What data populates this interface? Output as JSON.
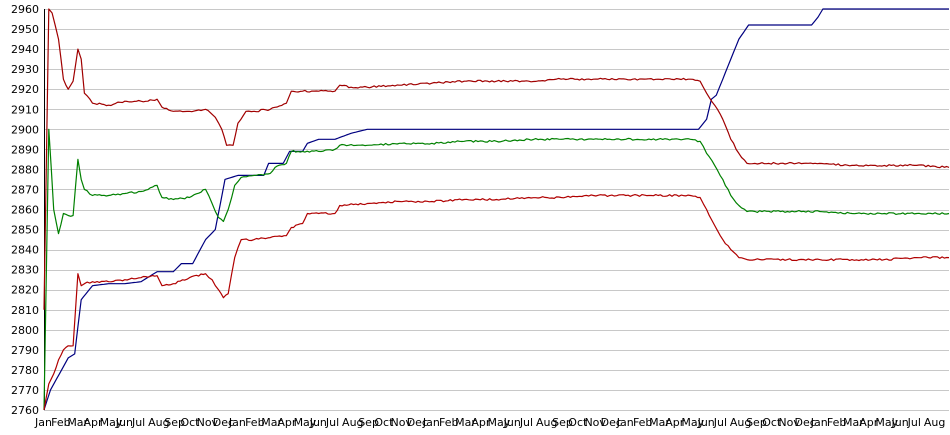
{
  "chart_data": {
    "type": "line",
    "title": "",
    "xlabel": "",
    "ylabel": "",
    "ylim": [
      2760,
      2960
    ],
    "grid": true,
    "legend": "none",
    "y_ticks": [
      2760,
      2770,
      2780,
      2790,
      2800,
      2810,
      2820,
      2830,
      2840,
      2850,
      2860,
      2870,
      2880,
      2890,
      2900,
      2910,
      2920,
      2930,
      2940,
      2950,
      2960
    ],
    "x_month_count": 56,
    "x_tick_labels": [
      "Jan",
      "Feb",
      "Mar",
      "Apr",
      "May",
      "Jun",
      "Jul",
      "Aug",
      "Sep",
      "Oct",
      "Nov",
      "Dec",
      "Jan",
      "Feb",
      "Mar",
      "Apr",
      "May",
      "Jun",
      "Jul",
      "Aug",
      "Sep",
      "Oct",
      "Nov",
      "Dec",
      "Jan",
      "Feb",
      "Mar",
      "Apr",
      "May",
      "Jun",
      "Jul",
      "Aug",
      "Sep",
      "Oct",
      "Nov",
      "Dec",
      "Jan",
      "Feb",
      "Mar",
      "Apr",
      "May",
      "Jun",
      "Jul",
      "Aug",
      "Sep",
      "Oct",
      "Nov",
      "Dec",
      "Jan",
      "Feb",
      "Mar",
      "Apr",
      "May",
      "Jun",
      "Jul",
      "Aug"
    ],
    "series": [
      {
        "color": "#000080",
        "points": [
          [
            0,
            2760
          ],
          [
            0.4,
            2770
          ],
          [
            1.5,
            2786
          ],
          [
            1.9,
            2788
          ],
          [
            2.3,
            2815
          ],
          [
            3,
            2822
          ],
          [
            4,
            2823
          ],
          [
            5,
            2823
          ],
          [
            6,
            2824
          ],
          [
            7,
            2829
          ],
          [
            8,
            2829
          ],
          [
            8.5,
            2833
          ],
          [
            9.2,
            2833
          ],
          [
            10,
            2845
          ],
          [
            10.6,
            2850
          ],
          [
            11.2,
            2875
          ],
          [
            12,
            2877
          ],
          [
            13,
            2877
          ],
          [
            13.6,
            2877
          ],
          [
            13.9,
            2883
          ],
          [
            14.8,
            2883
          ],
          [
            15.2,
            2889
          ],
          [
            16,
            2889
          ],
          [
            16.3,
            2893
          ],
          [
            17,
            2895
          ],
          [
            18,
            2895
          ],
          [
            19,
            2898
          ],
          [
            20,
            2900
          ],
          [
            25,
            2900
          ],
          [
            30,
            2900
          ],
          [
            35,
            2900
          ],
          [
            40.5,
            2900
          ],
          [
            41,
            2905
          ],
          [
            41.3,
            2915
          ],
          [
            41.6,
            2917
          ],
          [
            42,
            2925
          ],
          [
            42.5,
            2935
          ],
          [
            43,
            2945
          ],
          [
            43.6,
            2952
          ],
          [
            45,
            2952
          ],
          [
            47.5,
            2952
          ],
          [
            47.9,
            2956
          ],
          [
            48.2,
            2960
          ],
          [
            52,
            2960
          ],
          [
            56,
            2960
          ]
        ]
      },
      {
        "color": "#a00000",
        "points": [
          [
            0,
            2810
          ],
          [
            0.3,
            2960
          ],
          [
            0.5,
            2958
          ],
          [
            0.9,
            2945
          ],
          [
            1.2,
            2925
          ],
          [
            1.5,
            2920
          ],
          [
            1.8,
            2924
          ],
          [
            2.1,
            2940
          ],
          [
            2.3,
            2935
          ],
          [
            2.5,
            2918
          ],
          [
            3,
            2913
          ],
          [
            4,
            2912
          ],
          [
            5,
            2914
          ],
          [
            6,
            2914
          ],
          [
            7,
            2915
          ],
          [
            7.3,
            2911
          ],
          [
            8,
            2909
          ],
          [
            9,
            2909
          ],
          [
            10,
            2910
          ],
          [
            10.6,
            2906
          ],
          [
            11,
            2900
          ],
          [
            11.3,
            2892
          ],
          [
            11.7,
            2892
          ],
          [
            12,
            2903
          ],
          [
            12.5,
            2909
          ],
          [
            13,
            2909
          ],
          [
            14,
            2910
          ],
          [
            15,
            2913
          ],
          [
            15.3,
            2919
          ],
          [
            16,
            2919
          ],
          [
            17,
            2919
          ],
          [
            18,
            2919
          ],
          [
            18.3,
            2922
          ],
          [
            19,
            2921
          ],
          [
            20,
            2921
          ],
          [
            22,
            2922
          ],
          [
            24,
            2923
          ],
          [
            26,
            2924
          ],
          [
            28,
            2924
          ],
          [
            30,
            2924
          ],
          [
            32,
            2925
          ],
          [
            34,
            2925
          ],
          [
            36,
            2925
          ],
          [
            38,
            2925
          ],
          [
            40,
            2925
          ],
          [
            40.6,
            2924
          ],
          [
            41,
            2918
          ],
          [
            41.5,
            2912
          ],
          [
            42,
            2905
          ],
          [
            42.5,
            2895
          ],
          [
            43,
            2888
          ],
          [
            43.5,
            2883
          ],
          [
            44,
            2883
          ],
          [
            46,
            2883
          ],
          [
            48,
            2883
          ],
          [
            50,
            2882
          ],
          [
            52,
            2882
          ],
          [
            54,
            2882
          ],
          [
            56,
            2881
          ]
        ]
      },
      {
        "color": "#008000",
        "points": [
          [
            0,
            2760
          ],
          [
            0.3,
            2900
          ],
          [
            0.6,
            2860
          ],
          [
            0.9,
            2848
          ],
          [
            1.2,
            2858
          ],
          [
            1.5,
            2857
          ],
          [
            1.8,
            2857
          ],
          [
            2.1,
            2885
          ],
          [
            2.3,
            2875
          ],
          [
            2.5,
            2870
          ],
          [
            3,
            2867
          ],
          [
            4,
            2867
          ],
          [
            5,
            2868
          ],
          [
            6,
            2869
          ],
          [
            7,
            2872
          ],
          [
            7.3,
            2866
          ],
          [
            8,
            2865
          ],
          [
            9,
            2866
          ],
          [
            10,
            2870
          ],
          [
            10.4,
            2863
          ],
          [
            10.8,
            2856
          ],
          [
            11.1,
            2854
          ],
          [
            11.4,
            2860
          ],
          [
            11.8,
            2872
          ],
          [
            12.2,
            2876
          ],
          [
            13,
            2877
          ],
          [
            14,
            2878
          ],
          [
            14.3,
            2881
          ],
          [
            15,
            2883
          ],
          [
            15.3,
            2889
          ],
          [
            16,
            2889
          ],
          [
            17,
            2889
          ],
          [
            18,
            2890
          ],
          [
            18.3,
            2892
          ],
          [
            20,
            2892
          ],
          [
            22,
            2893
          ],
          [
            24,
            2893
          ],
          [
            26,
            2894
          ],
          [
            28,
            2894
          ],
          [
            30,
            2895
          ],
          [
            32,
            2895
          ],
          [
            34,
            2895
          ],
          [
            36,
            2895
          ],
          [
            38,
            2895
          ],
          [
            40,
            2895
          ],
          [
            40.6,
            2894
          ],
          [
            41,
            2888
          ],
          [
            41.5,
            2882
          ],
          [
            42,
            2875
          ],
          [
            42.5,
            2867
          ],
          [
            43,
            2862
          ],
          [
            43.5,
            2859
          ],
          [
            44,
            2859
          ],
          [
            46,
            2859
          ],
          [
            48,
            2859
          ],
          [
            50,
            2858
          ],
          [
            52,
            2858
          ],
          [
            54,
            2858
          ],
          [
            56,
            2858
          ]
        ]
      },
      {
        "color": "#b00000",
        "points": [
          [
            0,
            2760
          ],
          [
            0.3,
            2773
          ],
          [
            0.6,
            2778
          ],
          [
            0.9,
            2785
          ],
          [
            1.2,
            2790
          ],
          [
            1.5,
            2792
          ],
          [
            1.8,
            2792
          ],
          [
            2.1,
            2828
          ],
          [
            2.3,
            2822
          ],
          [
            2.5,
            2823
          ],
          [
            3,
            2824
          ],
          [
            4,
            2824
          ],
          [
            5,
            2825
          ],
          [
            6,
            2826
          ],
          [
            7,
            2827
          ],
          [
            7.3,
            2822
          ],
          [
            8,
            2823
          ],
          [
            9,
            2826
          ],
          [
            10,
            2828
          ],
          [
            10.4,
            2825
          ],
          [
            10.8,
            2820
          ],
          [
            11.1,
            2816
          ],
          [
            11.4,
            2818
          ],
          [
            11.8,
            2836
          ],
          [
            12.2,
            2845
          ],
          [
            13,
            2845
          ],
          [
            14,
            2846
          ],
          [
            15,
            2847
          ],
          [
            15.3,
            2851
          ],
          [
            16,
            2853
          ],
          [
            16.3,
            2858
          ],
          [
            17,
            2858
          ],
          [
            18,
            2858
          ],
          [
            18.3,
            2862
          ],
          [
            20,
            2863
          ],
          [
            22,
            2864
          ],
          [
            24,
            2864
          ],
          [
            26,
            2865
          ],
          [
            28,
            2865
          ],
          [
            30,
            2866
          ],
          [
            32,
            2866
          ],
          [
            34,
            2867
          ],
          [
            36,
            2867
          ],
          [
            38,
            2867
          ],
          [
            40,
            2867
          ],
          [
            40.6,
            2866
          ],
          [
            41,
            2860
          ],
          [
            41.5,
            2852
          ],
          [
            42,
            2845
          ],
          [
            42.5,
            2840
          ],
          [
            43,
            2836
          ],
          [
            43.5,
            2835
          ],
          [
            44,
            2835
          ],
          [
            46,
            2835
          ],
          [
            48,
            2835
          ],
          [
            50,
            2835
          ],
          [
            52,
            2835
          ],
          [
            54,
            2836
          ],
          [
            56,
            2836
          ]
        ]
      }
    ]
  }
}
